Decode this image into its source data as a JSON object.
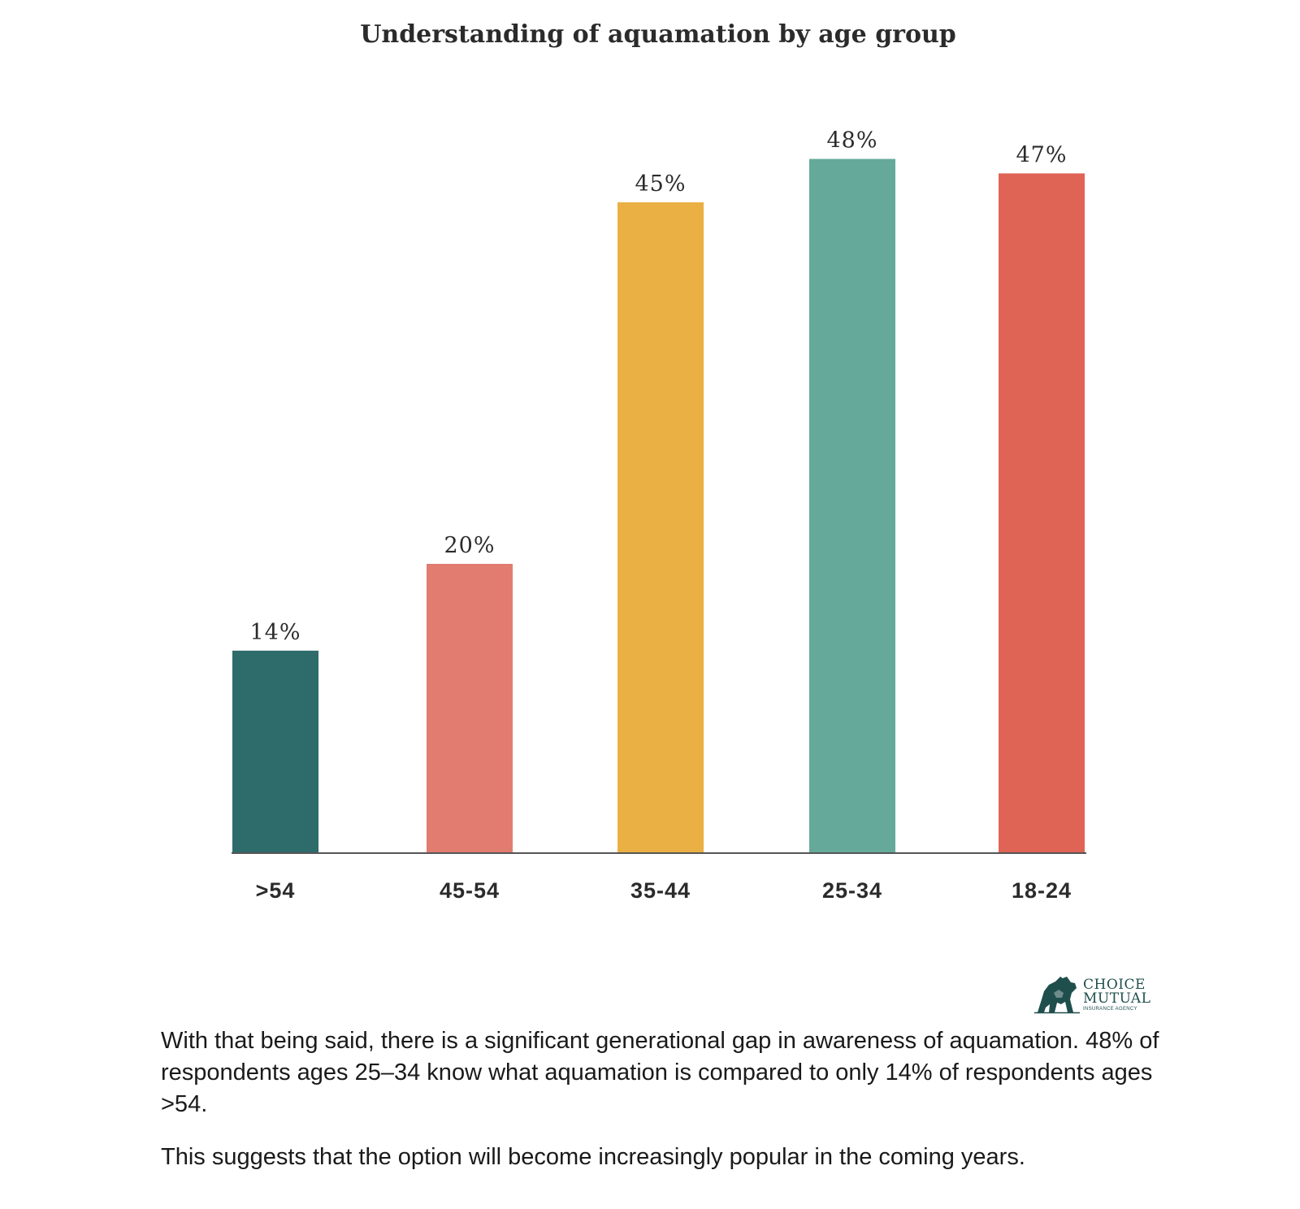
{
  "chart_data": {
    "type": "bar",
    "title": "Understanding of aquamation by age group",
    "categories": [
      ">54",
      "45-54",
      "35-44",
      "25-34",
      "18-24"
    ],
    "values": [
      14,
      20,
      45,
      48,
      47
    ],
    "value_labels": [
      "14%",
      "20%",
      "45%",
      "48%",
      "47%"
    ],
    "colors": [
      "#2e6b6b",
      "#e27b70",
      "#eab044",
      "#65a99a",
      "#e06455"
    ],
    "axis_color": "#555555",
    "xlabel": "",
    "ylabel": "",
    "ylim": [
      0,
      50
    ],
    "grid": false,
    "legend": "none"
  },
  "logo": {
    "line1": "CHOICE",
    "line2": "MUTUAL",
    "line3": "INSURANCE AGENCY",
    "icon": "bear-icon",
    "color": "#1f4f4c"
  },
  "text": {
    "paragraph1": "With that being said, there is a significant generational gap in awareness of aquamation. 48% of respondents ages 25–34 know what aquamation is compared to only 14% of respondents ages >54.",
    "paragraph2": "This suggests that the option will become increasingly popular in the coming years."
  }
}
